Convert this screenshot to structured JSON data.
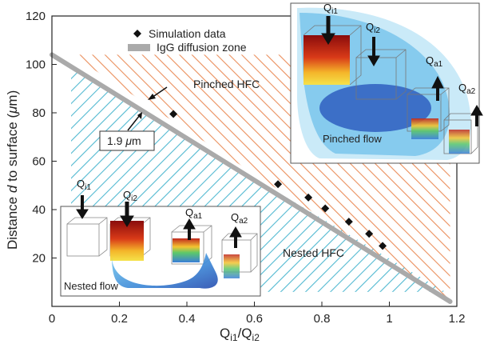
{
  "chart_data": {
    "type": "scatter",
    "xlabel": {
      "main": "Q",
      "sub1": "i1",
      "slash": "/Q",
      "sub2": "i2"
    },
    "ylabel": {
      "prefix": "Distance ",
      "italic": "d",
      "suffix": " to surface (",
      "unit_italic": "μ",
      "unit": "m)"
    },
    "xlim": [
      0,
      1.2
    ],
    "ylim": [
      0,
      120
    ],
    "xticks": [
      "0",
      "0.2",
      "0.4",
      "0.6",
      "0.8",
      "1",
      "1.2"
    ],
    "yticks": [
      "20",
      "40",
      "60",
      "80",
      "100",
      "120"
    ],
    "series": [
      {
        "name": "Simulation data",
        "marker": "diamond",
        "x": [
          0.36,
          0.67,
          0.76,
          0.81,
          0.88,
          0.94,
          0.98
        ],
        "y": [
          79.5,
          50.5,
          45,
          40.5,
          35,
          30,
          25
        ]
      }
    ],
    "diffusion_zone": {
      "name": "IgG diffusion zone",
      "x": [
        0.0,
        1.18
      ],
      "y": [
        104,
        2
      ]
    },
    "legend": {
      "placement": "top-left"
    },
    "colors": {
      "pinched_hatch": "#e8824a",
      "nested_hatch": "#3fb1cc",
      "zone": "#aaaaaa"
    },
    "regions": {
      "pinched": "Pinched HFC",
      "nested": "Nested HFC"
    },
    "annotation": {
      "value": "1.9 ",
      "unit_italic": "μ",
      "unit": "m"
    },
    "insets": {
      "nested": {
        "caption": "Nested flow",
        "labels": [
          "i1",
          "i2",
          "a1",
          "a2"
        ]
      },
      "pinched": {
        "caption": "Pinched flow",
        "labels": [
          "i1",
          "i2",
          "a1",
          "a2"
        ]
      }
    }
  }
}
